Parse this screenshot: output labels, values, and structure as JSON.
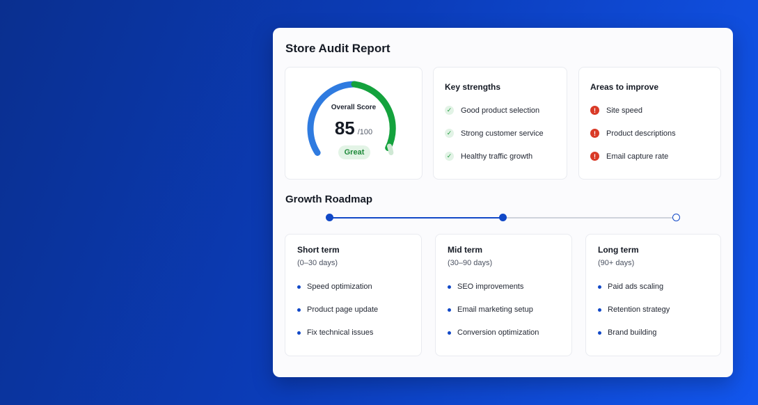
{
  "report": {
    "title": "Store Audit Report",
    "score": {
      "label": "Overall Score",
      "value": "85",
      "max": "/100",
      "badge": "Great",
      "fraction": 0.85
    },
    "strengths": {
      "title": "Key strengths",
      "items": [
        "Good product selection",
        "Strong customer service",
        "Healthy traffic growth"
      ]
    },
    "improve": {
      "title": "Areas to improve",
      "items": [
        "Site speed",
        "Product descriptions",
        "Email capture rate"
      ]
    },
    "roadmap": {
      "title": "Growth Roadmap",
      "stages": [
        {
          "title": "Short term",
          "range": "(0–30 days)",
          "items": [
            "Speed optimization",
            "Product page update",
            "Fix technical issues"
          ]
        },
        {
          "title": "Mid term",
          "range": "(30–90 days)",
          "items": [
            "SEO improvements",
            "Email marketing setup",
            "Conversion optimization"
          ]
        },
        {
          "title": "Long term",
          "range": "(90+ days)",
          "items": [
            "Paid ads scaling",
            "Retention strategy",
            "Brand building"
          ]
        }
      ]
    }
  },
  "colors": {
    "accent": "#1148c7",
    "gauge_blue": "#2f7be0",
    "gauge_green": "#14a23d",
    "warn": "#d93a27",
    "check": "#1f9a3c"
  }
}
